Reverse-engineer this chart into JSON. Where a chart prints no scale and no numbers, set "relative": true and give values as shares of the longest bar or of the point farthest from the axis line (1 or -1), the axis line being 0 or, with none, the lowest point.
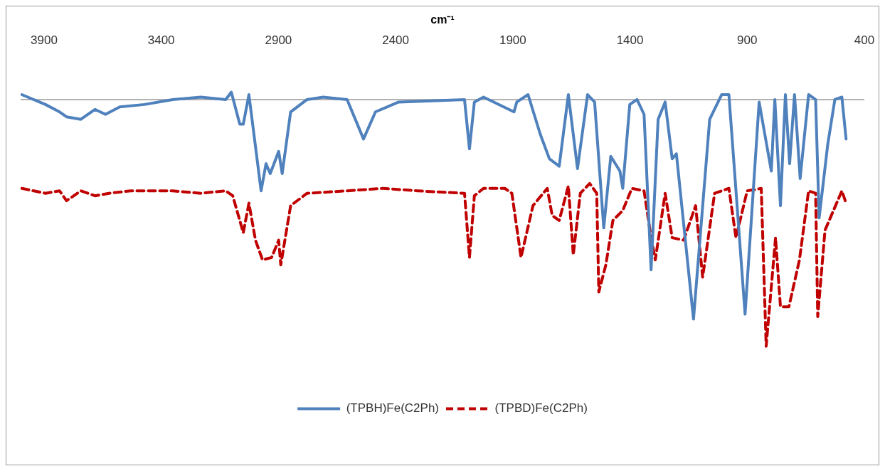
{
  "chart_data": {
    "type": "line",
    "xlabel": "cm⁻¹",
    "relative": true,
    "xlim": [
      4000,
      400
    ],
    "xticks": [
      3900,
      3400,
      2900,
      2400,
      1900,
      1400,
      900,
      400
    ],
    "grid": false,
    "legend": "bottom",
    "marker": "none",
    "series": [
      {
        "name": "(TPBH)Fe(C2Ph)",
        "color": "#4f81bd",
        "line_style": "solid",
        "x": [
          3995,
          3894,
          3834,
          3804,
          3743,
          3683,
          3638,
          3577,
          3472,
          3351,
          3231,
          3125,
          3101,
          3065,
          3050,
          3026,
          2974,
          2953,
          2935,
          2899,
          2884,
          2848,
          2778,
          2709,
          2607,
          2537,
          2486,
          2387,
          2106,
          2085,
          2064,
          2025,
          1895,
          1883,
          1835,
          1783,
          1744,
          1702,
          1663,
          1624,
          1581,
          1551,
          1512,
          1482,
          1443,
          1431,
          1401,
          1370,
          1340,
          1310,
          1280,
          1250,
          1220,
          1202,
          1129,
          1060,
          1009,
          978,
          909,
          849,
          797,
          782,
          758,
          737,
          719,
          698,
          674,
          638,
          608,
          593,
          556,
          526,
          496,
          478
        ],
        "values": [
          0.02,
          -0.02,
          -0.05,
          -0.07,
          -0.08,
          -0.04,
          -0.06,
          -0.03,
          -0.02,
          0,
          0.01,
          0,
          0.03,
          -0.1,
          -0.1,
          0.02,
          -0.37,
          -0.26,
          -0.3,
          -0.21,
          -0.3,
          -0.05,
          0,
          0.01,
          0,
          -0.16,
          -0.05,
          -0.01,
          0,
          -0.2,
          -0.01,
          0.01,
          -0.05,
          -0.01,
          0.02,
          -0.14,
          -0.24,
          -0.27,
          0.02,
          -0.28,
          0.02,
          -0.01,
          -0.52,
          -0.23,
          -0.29,
          -0.36,
          -0.02,
          0,
          -0.06,
          -0.69,
          -0.08,
          -0.01,
          -0.24,
          -0.22,
          -0.89,
          -0.08,
          0.02,
          0.02,
          -0.87,
          -0.01,
          -0.29,
          0,
          -0.43,
          0.02,
          -0.26,
          0.02,
          -0.32,
          0.02,
          0,
          -0.48,
          -0.18,
          0,
          0.01,
          -0.16
        ]
      },
      {
        "name": "(TPBD)Fe(C2Ph)",
        "color": "#c00000",
        "line_style": "dashed",
        "x": [
          3995,
          3894,
          3834,
          3804,
          3743,
          3683,
          3623,
          3532,
          3351,
          3231,
          3125,
          3095,
          3074,
          3050,
          3026,
          2998,
          2968,
          2929,
          2899,
          2890,
          2848,
          2778,
          2607,
          2456,
          2305,
          2106,
          2085,
          2064,
          2025,
          1934,
          1904,
          1865,
          1814,
          1753,
          1732,
          1702,
          1663,
          1642,
          1612,
          1572,
          1542,
          1533,
          1503,
          1473,
          1431,
          1392,
          1340,
          1310,
          1292,
          1250,
          1220,
          1171,
          1120,
          1090,
          1039,
          978,
          948,
          900,
          840,
          819,
          779,
          758,
          722,
          677,
          638,
          608,
          599,
          568,
          496,
          478
        ],
        "values": [
          -0.36,
          -0.38,
          -0.37,
          -0.41,
          -0.37,
          -0.39,
          -0.38,
          -0.37,
          -0.37,
          -0.38,
          -0.37,
          -0.39,
          -0.46,
          -0.54,
          -0.42,
          -0.57,
          -0.65,
          -0.64,
          -0.57,
          -0.67,
          -0.43,
          -0.38,
          -0.37,
          -0.36,
          -0.37,
          -0.38,
          -0.64,
          -0.39,
          -0.36,
          -0.36,
          -0.38,
          -0.64,
          -0.43,
          -0.36,
          -0.47,
          -0.49,
          -0.35,
          -0.63,
          -0.38,
          -0.34,
          -0.38,
          -0.78,
          -0.67,
          -0.49,
          -0.45,
          -0.36,
          -0.37,
          -0.56,
          -0.65,
          -0.38,
          -0.56,
          -0.57,
          -0.43,
          -0.72,
          -0.38,
          -0.36,
          -0.56,
          -0.37,
          -0.36,
          -1,
          -0.56,
          -0.84,
          -0.84,
          -0.65,
          -0.37,
          -0.38,
          -0.88,
          -0.53,
          -0.37,
          -0.42
        ]
      }
    ]
  }
}
